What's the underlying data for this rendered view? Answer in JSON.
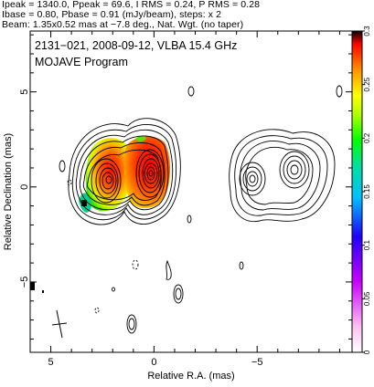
{
  "header": {
    "line1": "Ipeak = 1340.0, Ppeak = 69.6, I RMS = 0.24, P RMS = 0.28",
    "line2": "Ibase = 0.80, Pbase = 0.91 (mJy/beam), steps: x 2",
    "line3": "Beam: 1.35x0.52 mas at −7.8 deg., Nat. Wgt. (no taper)"
  },
  "plot": {
    "title_line1": "2131−021, 2008-09-12, VLBA 15.4 GHz",
    "title_line2": "MOJAVE Program",
    "xlabel": "Relative R.A. (mas)",
    "ylabel": "Relative Declination (mas)"
  },
  "chart_data": [
    {
      "type": "heatmap",
      "title": "2131−021, 2008-09-12, VLBA 15.4 GHz",
      "subtitle": "MOJAVE Program",
      "xlabel": "Relative R.A. (mas)",
      "ylabel": "Relative Declination (mas)",
      "xlim": [
        6.0,
        -9.6
      ],
      "ylim": [
        -8.7,
        8.2
      ],
      "x_ticks": [
        5,
        0,
        -5
      ],
      "x_tick_labels": [
        "5",
        "0",
        "−5"
      ],
      "y_ticks": [
        5,
        0,
        -5
      ],
      "y_tick_labels": [
        "5",
        "0",
        "−5"
      ],
      "colorbar": {
        "range": [
          0,
          0.3
        ],
        "ticks": [
          0,
          0.05,
          0.1,
          0.15,
          0.2,
          0.25,
          0.3
        ],
        "tick_labels": [
          "0",
          "0.05",
          "0.1",
          "0.15",
          "0.2",
          "0.25",
          "0.3"
        ]
      },
      "components": [
        {
          "x": 2.1,
          "y": 0.0,
          "description": "east component (polarized, contours)"
        },
        {
          "x": 0.0,
          "y": 0.3,
          "description": "core component (polarized, contours)"
        },
        {
          "x": -4.7,
          "y": -0.2,
          "description": "west lobe (contours only)"
        },
        {
          "x": -6.9,
          "y": 0.3,
          "description": "west lobe peak (contours only)"
        }
      ],
      "stats": {
        "Ipeak": 1340.0,
        "Ppeak": 69.6,
        "I_RMS": 0.24,
        "P_RMS": 0.28,
        "Ibase": 0.8,
        "Pbase": 0.91,
        "units": "mJy/beam",
        "steps": "x 2"
      },
      "beam": {
        "major": 1.35,
        "minor": 0.52,
        "pa": -7.8
      }
    }
  ],
  "colors": {
    "colorbar_stops": [
      "#ffffff",
      "#ffb6ff",
      "#c800ff",
      "#0000ff",
      "#00c8ff",
      "#00e0a0",
      "#00ff00",
      "#a0ff00",
      "#ffff00",
      "#ffa000",
      "#ff0000",
      "#000000"
    ]
  }
}
